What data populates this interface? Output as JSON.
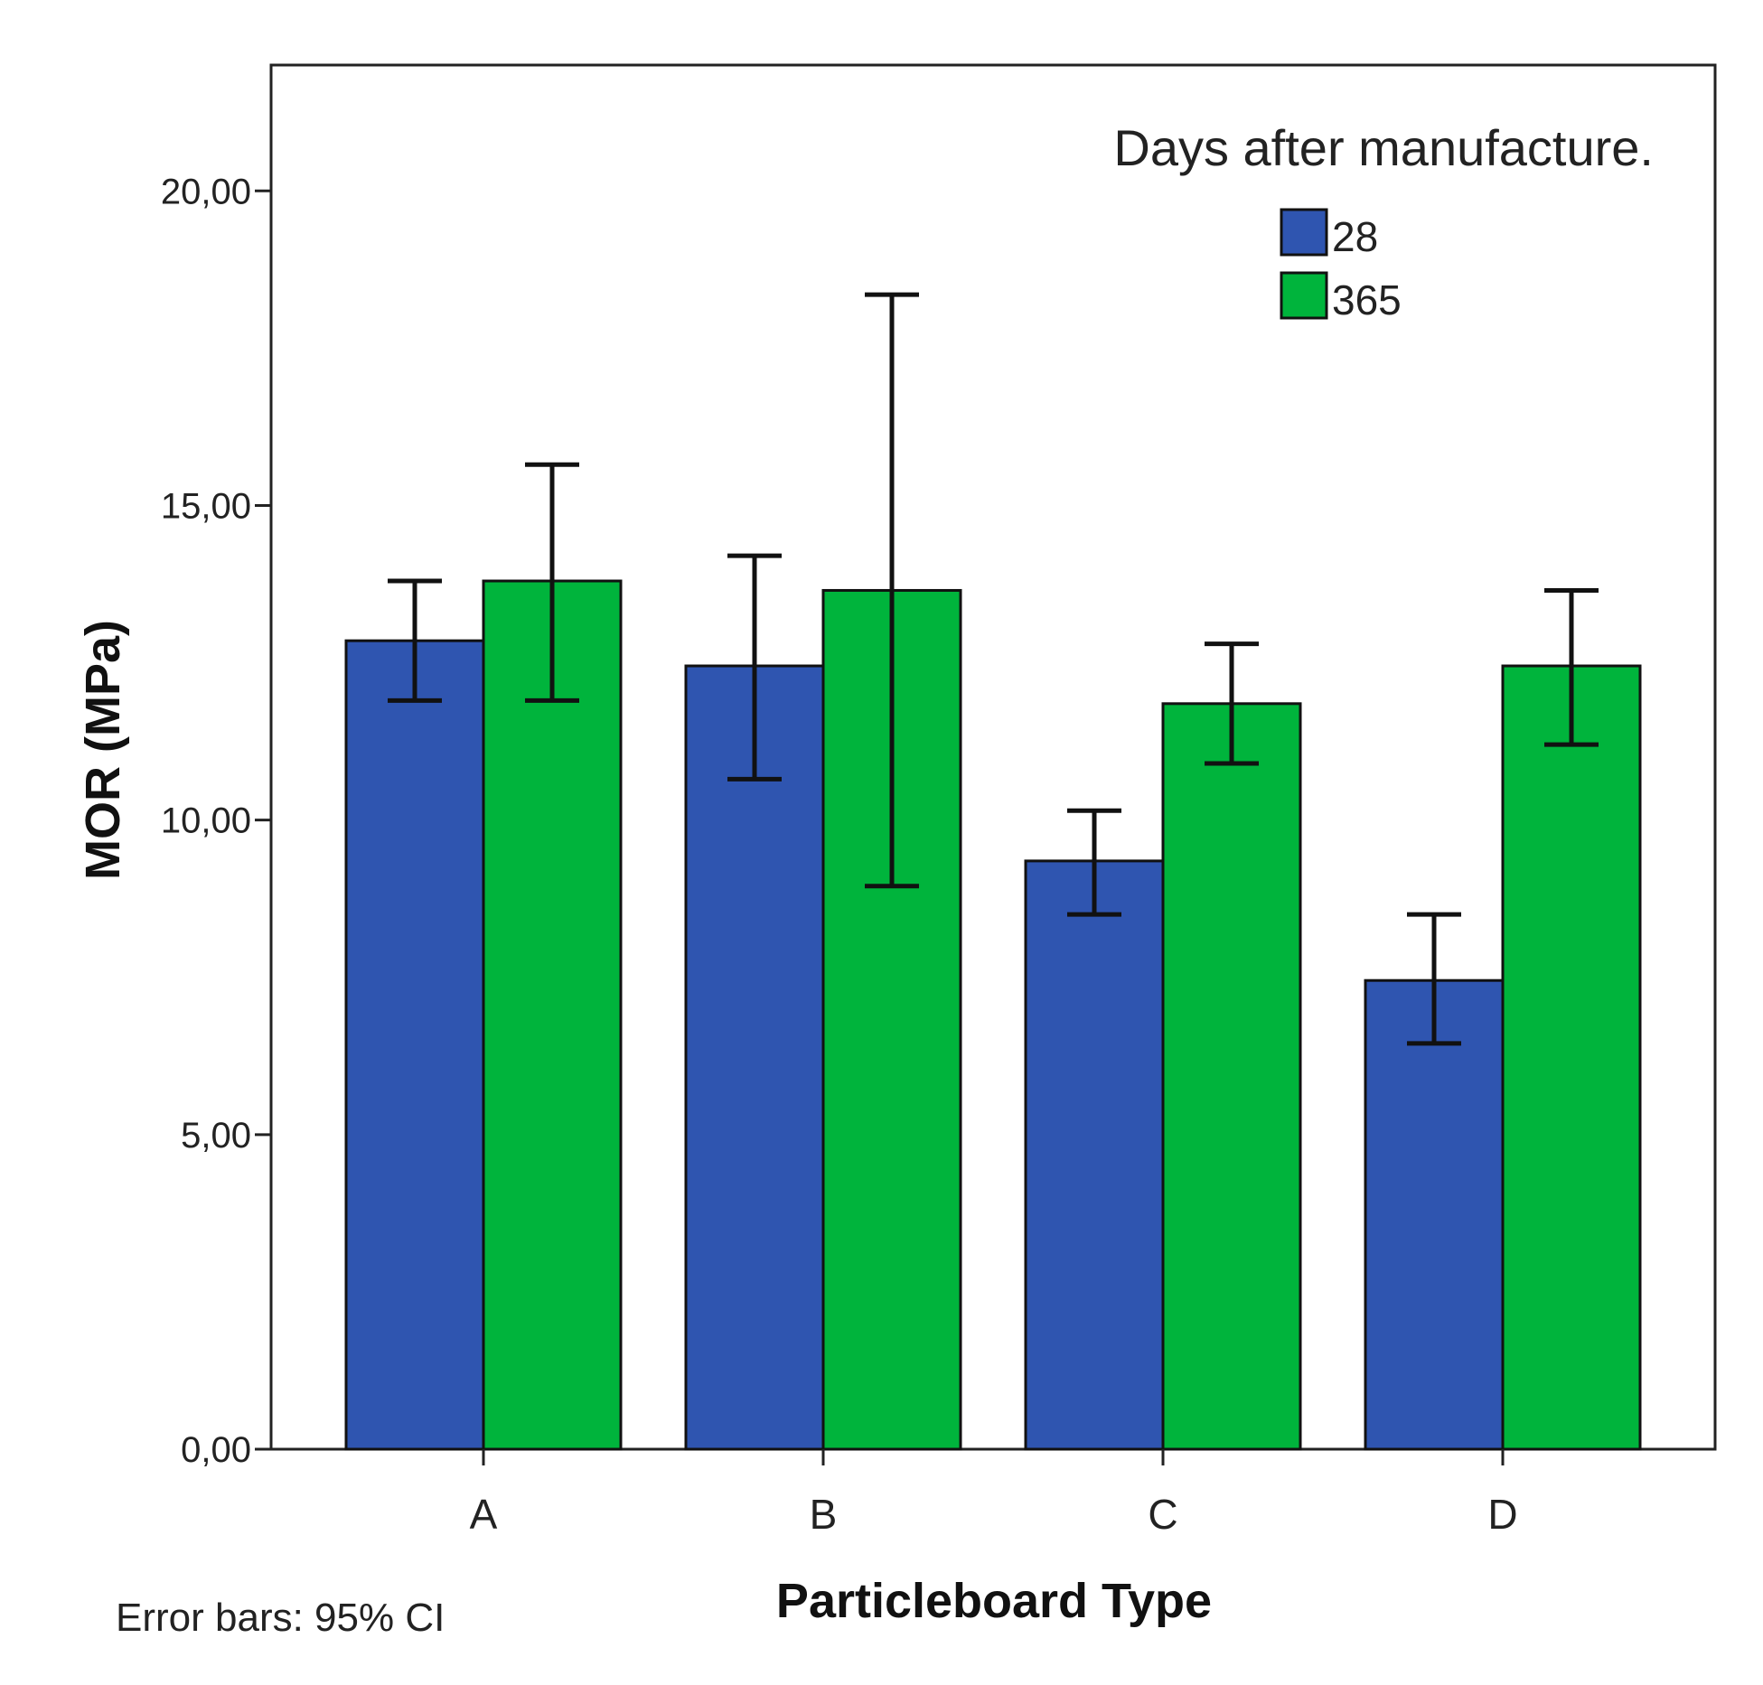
{
  "chart_data": {
    "type": "bar",
    "categories": [
      "A",
      "B",
      "C",
      "D"
    ],
    "series": [
      {
        "name": "28",
        "color": "#2f55b0",
        "values": [
          12.85,
          12.45,
          9.35,
          7.45
        ],
        "ci_low": [
          11.9,
          10.65,
          8.5,
          6.45
        ],
        "ci_high": [
          13.8,
          14.2,
          10.15,
          8.5
        ]
      },
      {
        "name": "365",
        "color": "#00b43c",
        "values": [
          13.8,
          13.65,
          11.85,
          12.45
        ],
        "ci_low": [
          11.9,
          8.95,
          10.9,
          11.2
        ],
        "ci_high": [
          15.65,
          18.35,
          12.8,
          13.65
        ]
      }
    ],
    "xlabel": "Particleboard Type",
    "ylabel": "MOR (MPa)",
    "ylim": [
      0,
      22
    ],
    "yticks": [
      0,
      5,
      10,
      15,
      20
    ],
    "ytick_labels": [
      "0,00",
      "5,00",
      "10,00",
      "15,00",
      "20,00"
    ],
    "legend_title": "Days after manufacture.",
    "legend_position": "top-right",
    "footnote": "Error bars: 95% CI",
    "grid": false
  }
}
